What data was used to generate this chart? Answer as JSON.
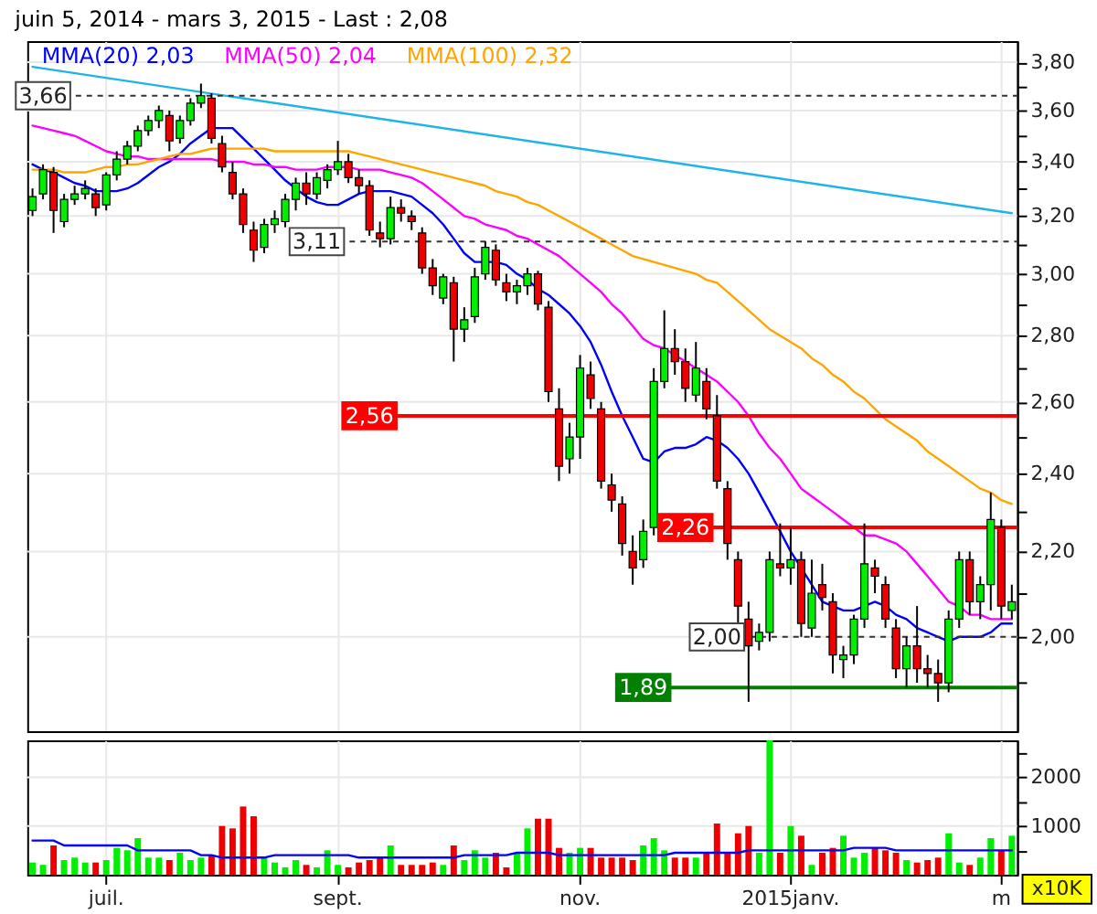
{
  "chart_data": [
    {
      "type": "candlestick",
      "title": "juin 5, 2014 - mars 3, 2015 - Last : 2,08",
      "categories": [
        null,
        null,
        null,
        null,
        null,
        null,
        null,
        null,
        null,
        null,
        null,
        null,
        null,
        null,
        null,
        null,
        null,
        null,
        null,
        null,
        null,
        null,
        null,
        null,
        null,
        null,
        null,
        null,
        null,
        null,
        null,
        null,
        null,
        null,
        null,
        null,
        null,
        null,
        null,
        null,
        null,
        null,
        null,
        null,
        null,
        null,
        null,
        null,
        null,
        null,
        null,
        null,
        null,
        null,
        null,
        null,
        null,
        null,
        null,
        null,
        null,
        null,
        null,
        null,
        null,
        null,
        null,
        null,
        null,
        null,
        null,
        null,
        null,
        null,
        null,
        null,
        null,
        null,
        null,
        null,
        null,
        null,
        null,
        null,
        null,
        null,
        null,
        null,
        null,
        null,
        null,
        null,
        null,
        null
      ],
      "ohlc": [
        [
          3.22,
          3.3,
          3.2,
          3.27
        ],
        [
          3.28,
          3.39,
          3.26,
          3.37
        ],
        [
          3.36,
          3.38,
          3.14,
          3.22
        ],
        [
          3.18,
          3.28,
          3.16,
          3.26
        ],
        [
          3.26,
          3.31,
          3.24,
          3.28
        ],
        [
          3.28,
          3.33,
          3.26,
          3.3
        ],
        [
          3.28,
          3.3,
          3.2,
          3.23
        ],
        [
          3.24,
          3.36,
          3.22,
          3.35
        ],
        [
          3.35,
          3.44,
          3.33,
          3.41
        ],
        [
          3.41,
          3.48,
          3.39,
          3.46
        ],
        [
          3.46,
          3.54,
          3.44,
          3.52
        ],
        [
          3.52,
          3.58,
          3.5,
          3.56
        ],
        [
          3.56,
          3.62,
          3.53,
          3.6
        ],
        [
          3.58,
          3.6,
          3.44,
          3.48
        ],
        [
          3.49,
          3.58,
          3.47,
          3.56
        ],
        [
          3.56,
          3.65,
          3.54,
          3.63
        ],
        [
          3.63,
          3.71,
          3.61,
          3.66
        ],
        [
          3.65,
          3.67,
          3.47,
          3.49
        ],
        [
          3.47,
          3.5,
          3.36,
          3.38
        ],
        [
          3.36,
          3.4,
          3.26,
          3.28
        ],
        [
          3.28,
          3.3,
          3.14,
          3.17
        ],
        [
          3.15,
          3.18,
          3.04,
          3.08
        ],
        [
          3.09,
          3.19,
          3.07,
          3.17
        ],
        [
          3.17,
          3.22,
          3.14,
          3.19
        ],
        [
          3.18,
          3.28,
          3.16,
          3.26
        ],
        [
          3.26,
          3.34,
          3.22,
          3.32
        ],
        [
          3.32,
          3.36,
          3.24,
          3.28
        ],
        [
          3.28,
          3.36,
          3.26,
          3.34
        ],
        [
          3.33,
          3.39,
          3.3,
          3.37
        ],
        [
          3.37,
          3.48,
          3.35,
          3.4
        ],
        [
          3.4,
          3.43,
          3.32,
          3.34
        ],
        [
          3.34,
          3.37,
          3.28,
          3.31
        ],
        [
          3.31,
          3.33,
          3.13,
          3.15
        ],
        [
          3.14,
          3.18,
          3.09,
          3.12
        ],
        [
          3.12,
          3.27,
          3.1,
          3.23
        ],
        [
          3.23,
          3.26,
          3.18,
          3.21
        ],
        [
          3.2,
          3.22,
          3.15,
          3.18
        ],
        [
          3.14,
          3.16,
          3.0,
          3.02
        ],
        [
          3.02,
          3.05,
          2.93,
          2.96
        ],
        [
          2.92,
          3.0,
          2.9,
          2.99
        ],
        [
          2.97,
          2.99,
          2.72,
          2.82
        ],
        [
          2.82,
          2.89,
          2.78,
          2.85
        ],
        [
          2.86,
          3.02,
          2.84,
          2.99
        ],
        [
          3.0,
          3.11,
          2.98,
          3.09
        ],
        [
          3.08,
          3.1,
          2.96,
          2.98
        ],
        [
          2.97,
          3.0,
          2.91,
          2.94
        ],
        [
          2.94,
          2.98,
          2.9,
          2.96
        ],
        [
          2.96,
          3.02,
          2.93,
          3.0
        ],
        [
          3.0,
          3.01,
          2.88,
          2.9
        ],
        [
          2.89,
          2.91,
          2.6,
          2.63
        ],
        [
          2.58,
          2.64,
          2.38,
          2.42
        ],
        [
          2.44,
          2.54,
          2.4,
          2.5
        ],
        [
          2.5,
          2.74,
          2.44,
          2.7
        ],
        [
          2.68,
          2.72,
          2.58,
          2.61
        ],
        [
          2.58,
          2.6,
          2.36,
          2.38
        ],
        [
          2.37,
          2.4,
          2.3,
          2.33
        ],
        [
          2.32,
          2.34,
          2.19,
          2.22
        ],
        [
          2.2,
          2.24,
          2.12,
          2.16
        ],
        [
          2.18,
          2.28,
          2.16,
          2.25
        ],
        [
          2.26,
          2.7,
          2.24,
          2.66
        ],
        [
          2.66,
          2.88,
          2.64,
          2.76
        ],
        [
          2.76,
          2.82,
          2.68,
          2.72
        ],
        [
          2.72,
          2.76,
          2.6,
          2.64
        ],
        [
          2.62,
          2.78,
          2.6,
          2.7
        ],
        [
          2.66,
          2.7,
          2.55,
          2.58
        ],
        [
          2.56,
          2.62,
          2.36,
          2.38
        ],
        [
          2.36,
          2.38,
          2.18,
          2.22
        ],
        [
          2.18,
          2.2,
          2.0,
          2.07
        ],
        [
          2.04,
          2.08,
          1.86,
          1.98
        ],
        [
          1.99,
          2.03,
          1.97,
          2.01
        ],
        [
          2.01,
          2.2,
          1.99,
          2.18
        ],
        [
          2.17,
          2.27,
          2.14,
          2.16
        ],
        [
          2.16,
          2.26,
          2.12,
          2.18
        ],
        [
          2.18,
          2.2,
          2.0,
          2.03
        ],
        [
          2.02,
          2.18,
          2.0,
          2.1
        ],
        [
          2.12,
          2.17,
          2.06,
          2.09
        ],
        [
          2.08,
          2.1,
          1.92,
          1.96
        ],
        [
          1.95,
          1.98,
          1.91,
          1.96
        ],
        [
          1.96,
          2.05,
          1.94,
          2.04
        ],
        [
          2.04,
          2.27,
          2.02,
          2.17
        ],
        [
          2.16,
          2.18,
          2.1,
          2.14
        ],
        [
          2.12,
          2.14,
          2.02,
          2.04
        ],
        [
          2.02,
          2.04,
          1.91,
          1.93
        ],
        [
          1.93,
          2.0,
          1.89,
          1.98
        ],
        [
          1.98,
          2.07,
          1.9,
          1.93
        ],
        [
          1.93,
          1.96,
          1.89,
          1.92
        ],
        [
          1.92,
          1.95,
          1.86,
          1.9
        ],
        [
          1.9,
          2.06,
          1.88,
          2.04
        ],
        [
          2.04,
          2.2,
          2.02,
          2.18
        ],
        [
          2.18,
          2.2,
          2.05,
          2.08
        ],
        [
          2.08,
          2.14,
          2.04,
          2.12
        ],
        [
          2.12,
          2.35,
          2.06,
          2.28
        ],
        [
          2.26,
          2.28,
          2.04,
          2.07
        ],
        [
          2.06,
          2.12,
          2.04,
          2.08
        ]
      ],
      "colors": [
        "#00ee00",
        "#00ee00",
        "#ee0000",
        "#00ee00",
        "#00ee00",
        "#00ee00",
        "#ee0000",
        "#00ee00",
        "#00ee00",
        "#00ee00",
        "#00ee00",
        "#00ee00",
        "#00ee00",
        "#ee0000",
        "#00ee00",
        "#00ee00",
        "#00ee00",
        "#ee0000",
        "#ee0000",
        "#ee0000",
        "#ee0000",
        "#ee0000",
        "#00ee00",
        "#00ee00",
        "#00ee00",
        "#00ee00",
        "#ee0000",
        "#00ee00",
        "#00ee00",
        "#00ee00",
        "#ee0000",
        "#ee0000",
        "#ee0000",
        "#ee0000",
        "#00ee00",
        "#ee0000",
        "#ee0000",
        "#ee0000",
        "#ee0000",
        "#00ee00",
        "#ee0000",
        "#00ee00",
        "#00ee00",
        "#00ee00",
        "#ee0000",
        "#ee0000",
        "#00ee00",
        "#00ee00",
        "#ee0000",
        "#ee0000",
        "#ee0000",
        "#00ee00",
        "#00ee00",
        "#ee0000",
        "#ee0000",
        "#ee0000",
        "#ee0000",
        "#ee0000",
        "#00ee00",
        "#00ee00",
        "#00ee00",
        "#ee0000",
        "#ee0000",
        "#00ee00",
        "#ee0000",
        "#ee0000",
        "#ee0000",
        "#ee0000",
        "#ee0000",
        "#00ee00",
        "#00ee00",
        "#ee0000",
        "#00ee00",
        "#ee0000",
        "#00ee00",
        "#ee0000",
        "#ee0000",
        "#00ee00",
        "#00ee00",
        "#00ee00",
        "#ee0000",
        "#ee0000",
        "#ee0000",
        "#00ee00",
        "#ee0000",
        "#ee0000",
        "#ee0000",
        "#00ee00",
        "#00ee00",
        "#ee0000",
        "#00ee00",
        "#00ee00",
        "#ee0000",
        "#00ee00"
      ],
      "series": [
        {
          "type": "line",
          "name": "MMA(20) 2,03",
          "color": "#0000ff",
          "values": [
            3.39,
            3.37,
            3.36,
            3.34,
            3.32,
            3.31,
            3.29,
            3.29,
            3.29,
            3.3,
            3.32,
            3.35,
            3.38,
            3.4,
            3.43,
            3.47,
            3.5,
            3.53,
            3.53,
            3.53,
            3.49,
            3.45,
            3.41,
            3.37,
            3.33,
            3.3,
            3.27,
            3.25,
            3.24,
            3.24,
            3.26,
            3.28,
            3.29,
            3.29,
            3.29,
            3.28,
            3.27,
            3.24,
            3.21,
            3.17,
            3.12,
            3.07,
            3.04,
            3.04,
            3.04,
            3.03,
            3.0,
            2.98,
            2.95,
            2.93,
            2.9,
            2.87,
            2.83,
            2.78,
            2.71,
            2.63,
            2.56,
            2.5,
            2.44,
            2.43,
            2.46,
            2.47,
            2.47,
            2.48,
            2.5,
            2.49,
            2.47,
            2.44,
            2.4,
            2.35,
            2.3,
            2.25,
            2.2,
            2.16,
            2.12,
            2.08,
            2.07,
            2.06,
            2.06,
            2.07,
            2.08,
            2.07,
            2.05,
            2.04,
            2.02,
            2.01,
            2.0,
            1.99,
            2.0,
            2.0,
            2.0,
            2.01,
            2.03,
            2.03
          ]
        },
        {
          "type": "line",
          "name": "MMA(50) 2,04",
          "color": "#ff00ff",
          "values": [
            3.54,
            3.53,
            3.52,
            3.51,
            3.5,
            3.48,
            3.46,
            3.44,
            3.43,
            3.42,
            3.42,
            3.41,
            3.41,
            3.41,
            3.41,
            3.41,
            3.41,
            3.41,
            3.4,
            3.4,
            3.4,
            3.39,
            3.39,
            3.38,
            3.38,
            3.37,
            3.37,
            3.37,
            3.38,
            3.38,
            3.38,
            3.37,
            3.37,
            3.37,
            3.36,
            3.35,
            3.34,
            3.32,
            3.29,
            3.26,
            3.23,
            3.2,
            3.19,
            3.17,
            3.16,
            3.15,
            3.13,
            3.12,
            3.1,
            3.08,
            3.06,
            3.03,
            3.0,
            2.97,
            2.94,
            2.9,
            2.87,
            2.83,
            2.79,
            2.77,
            2.76,
            2.74,
            2.72,
            2.7,
            2.68,
            2.66,
            2.63,
            2.6,
            2.56,
            2.51,
            2.47,
            2.44,
            2.4,
            2.36,
            2.34,
            2.32,
            2.3,
            2.28,
            2.26,
            2.24,
            2.24,
            2.23,
            2.22,
            2.2,
            2.17,
            2.14,
            2.11,
            2.08,
            2.07,
            2.05,
            2.05,
            2.04,
            2.04,
            2.04
          ]
        },
        {
          "type": "line",
          "name": "MMA(100) 2,32",
          "color": "#ffa500",
          "values": [
            3.37,
            3.37,
            3.37,
            3.36,
            3.36,
            3.36,
            3.37,
            3.38,
            3.38,
            3.39,
            3.39,
            3.4,
            3.41,
            3.42,
            3.43,
            3.43,
            3.44,
            3.45,
            3.45,
            3.45,
            3.45,
            3.45,
            3.45,
            3.44,
            3.44,
            3.44,
            3.44,
            3.44,
            3.44,
            3.44,
            3.44,
            3.43,
            3.42,
            3.41,
            3.4,
            3.39,
            3.38,
            3.37,
            3.36,
            3.35,
            3.34,
            3.33,
            3.32,
            3.31,
            3.29,
            3.28,
            3.27,
            3.25,
            3.24,
            3.22,
            3.2,
            3.18,
            3.16,
            3.14,
            3.12,
            3.1,
            3.08,
            3.06,
            3.05,
            3.04,
            3.03,
            3.02,
            3.01,
            3.0,
            2.98,
            2.97,
            2.94,
            2.91,
            2.88,
            2.85,
            2.82,
            2.8,
            2.78,
            2.76,
            2.73,
            2.71,
            2.68,
            2.66,
            2.63,
            2.61,
            2.58,
            2.55,
            2.53,
            2.51,
            2.49,
            2.46,
            2.44,
            2.42,
            2.4,
            2.38,
            2.36,
            2.35,
            2.33,
            2.32
          ]
        },
        {
          "type": "line",
          "color": "#1eb4e6",
          "values": [
            3.78,
            null,
            null,
            null,
            null,
            null,
            null,
            null,
            null,
            null,
            null,
            null,
            null,
            null,
            null,
            null,
            null,
            null,
            null,
            null,
            null,
            null,
            null,
            null,
            null,
            null,
            null,
            null,
            null,
            null,
            null,
            null,
            null,
            null,
            null,
            null,
            null,
            null,
            null,
            null,
            null,
            null,
            null,
            null,
            null,
            null,
            null,
            null,
            null,
            null,
            null,
            null,
            null,
            null,
            null,
            null,
            null,
            null,
            null,
            null,
            null,
            null,
            null,
            null,
            null,
            null,
            null,
            null,
            null,
            null,
            null,
            null,
            null,
            null,
            null,
            null,
            null,
            null,
            null,
            null,
            null,
            null,
            null,
            null,
            null,
            null,
            null,
            null,
            null,
            null,
            null,
            null,
            null,
            3.21
          ]
        }
      ],
      "ref_lines": [
        {
          "axis": "y",
          "value": 3.66,
          "label": "3,66",
          "color": "#333333",
          "line_style": "dashed"
        },
        {
          "axis": "y",
          "value": 3.11,
          "label": "3,11",
          "color": "#333333",
          "line_style": "dashed"
        },
        {
          "axis": "y",
          "value": 2.56,
          "label": "2,56",
          "color": "#ff0000",
          "line_style": "solid"
        },
        {
          "axis": "y",
          "value": 2.26,
          "label": "2,26",
          "color": "#ff0000",
          "line_style": "solid"
        },
        {
          "axis": "y",
          "value": 2.0,
          "label": "2,00",
          "color": "#333333",
          "line_style": "dashed"
        },
        {
          "axis": "y",
          "value": 1.89,
          "label": "1,89",
          "color": "#008000",
          "line_style": "solid"
        }
      ],
      "ylim": [
        1.8,
        3.89
      ],
      "yticks": [
        {
          "value": 1.9,
          "label": null
        },
        {
          "value": 2.0,
          "label": "2,00"
        },
        {
          "value": 2.1,
          "label": null
        },
        {
          "value": 2.2,
          "label": "2,20"
        },
        {
          "value": 2.3,
          "label": null
        },
        {
          "value": 2.4,
          "label": "2,40"
        },
        {
          "value": 2.5,
          "label": null
        },
        {
          "value": 2.6,
          "label": "2,60"
        },
        {
          "value": 2.7,
          "label": null
        },
        {
          "value": 2.8,
          "label": "2,80"
        },
        {
          "value": 2.9,
          "label": null
        },
        {
          "value": 3.0,
          "label": "3,00"
        },
        {
          "value": 3.1,
          "label": null
        },
        {
          "value": 3.2,
          "label": "3,20"
        },
        {
          "value": 3.3,
          "label": null
        },
        {
          "value": 3.4,
          "label": "3,40"
        },
        {
          "value": 3.5,
          "label": null
        },
        {
          "value": 3.6,
          "label": "3,60"
        },
        {
          "value": 3.7,
          "label": null
        },
        {
          "value": 3.8,
          "label": "3,80"
        }
      ],
      "log": true,
      "grid": true,
      "legend": "top left",
      "tick_labels": "y"
    },
    {
      "type": "bar",
      "categories": [
        null,
        null,
        null,
        null,
        null,
        null,
        null,
        "juil.",
        null,
        null,
        null,
        null,
        null,
        null,
        null,
        null,
        null,
        null,
        null,
        null,
        null,
        null,
        null,
        null,
        null,
        null,
        null,
        null,
        null,
        "sept.",
        null,
        null,
        null,
        null,
        null,
        null,
        null,
        null,
        null,
        null,
        null,
        null,
        null,
        null,
        null,
        null,
        null,
        null,
        null,
        null,
        null,
        null,
        "nov.",
        null,
        null,
        null,
        null,
        null,
        null,
        null,
        null,
        null,
        null,
        null,
        null,
        null,
        null,
        null,
        null,
        null,
        null,
        null,
        "2015janv.",
        null,
        null,
        null,
        null,
        null,
        null,
        null,
        null,
        null,
        null,
        null,
        null,
        null,
        null,
        null,
        null,
        null,
        null,
        null,
        "m",
        null
      ],
      "series": [
        {
          "type": "bar",
          "values": [
            250,
            200,
            600,
            300,
            350,
            250,
            250,
            300,
            550,
            500,
            750,
            350,
            350,
            300,
            450,
            300,
            350,
            400,
            1000,
            950,
            1400,
            1200,
            350,
            250,
            150,
            300,
            200,
            150,
            500,
            200,
            150,
            250,
            300,
            350,
            600,
            200,
            200,
            200,
            250,
            200,
            600,
            300,
            500,
            350,
            450,
            150,
            450,
            950,
            1150,
            1150,
            550,
            450,
            550,
            550,
            350,
            350,
            350,
            300,
            600,
            750,
            500,
            350,
            350,
            350,
            450,
            1050,
            450,
            850,
            1000,
            450,
            2760,
            450,
            1000,
            800,
            200,
            450,
            550,
            800,
            350,
            450,
            550,
            500,
            450,
            300,
            250,
            300,
            350,
            850,
            250,
            200,
            350,
            750,
            500,
            800
          ],
          "colors": [
            "#00ee00",
            "#00ee00",
            "#ee0000",
            "#00ee00",
            "#00ee00",
            "#00ee00",
            "#ee0000",
            "#00ee00",
            "#00ee00",
            "#00ee00",
            "#00ee00",
            "#00ee00",
            "#00ee00",
            "#ee0000",
            "#00ee00",
            "#00ee00",
            "#00ee00",
            "#ee0000",
            "#ee0000",
            "#ee0000",
            "#ee0000",
            "#ee0000",
            "#00ee00",
            "#00ee00",
            "#00ee00",
            "#00ee00",
            "#ee0000",
            "#00ee00",
            "#00ee00",
            "#00ee00",
            "#ee0000",
            "#ee0000",
            "#ee0000",
            "#ee0000",
            "#00ee00",
            "#ee0000",
            "#ee0000",
            "#ee0000",
            "#ee0000",
            "#00ee00",
            "#ee0000",
            "#00ee00",
            "#00ee00",
            "#00ee00",
            "#ee0000",
            "#ee0000",
            "#00ee00",
            "#00ee00",
            "#ee0000",
            "#ee0000",
            "#ee0000",
            "#00ee00",
            "#00ee00",
            "#ee0000",
            "#ee0000",
            "#ee0000",
            "#ee0000",
            "#ee0000",
            "#00ee00",
            "#00ee00",
            "#00ee00",
            "#ee0000",
            "#ee0000",
            "#00ee00",
            "#ee0000",
            "#ee0000",
            "#ee0000",
            "#ee0000",
            "#ee0000",
            "#00ee00",
            "#00ee00",
            "#ee0000",
            "#00ee00",
            "#ee0000",
            "#00ee00",
            "#ee0000",
            "#ee0000",
            "#00ee00",
            "#00ee00",
            "#00ee00",
            "#ee0000",
            "#ee0000",
            "#ee0000",
            "#00ee00",
            "#ee0000",
            "#ee0000",
            "#ee0000",
            "#00ee00",
            "#00ee00",
            "#ee0000",
            "#00ee00",
            "#00ee00",
            "#ee0000",
            "#00ee00"
          ]
        },
        {
          "type": "line",
          "color": "#0000ff",
          "values": [
            700,
            700,
            700,
            600,
            600,
            600,
            600,
            600,
            600,
            600,
            500,
            500,
            500,
            500,
            500,
            500,
            400,
            400,
            350,
            350,
            350,
            350,
            350,
            400,
            400,
            400,
            400,
            400,
            400,
            400,
            400,
            350,
            350,
            350,
            350,
            350,
            350,
            350,
            350,
            350,
            350,
            400,
            400,
            400,
            400,
            400,
            450,
            450,
            450,
            450,
            400,
            400,
            400,
            400,
            400,
            400,
            400,
            400,
            400,
            400,
            400,
            450,
            450,
            450,
            450,
            450,
            450,
            450,
            500,
            500,
            500,
            500,
            500,
            500,
            500,
            500,
            500,
            500,
            550,
            550,
            550,
            550,
            500,
            500,
            500,
            500,
            500,
            500,
            500,
            500,
            500,
            500,
            500,
            500
          ]
        }
      ],
      "ylim": [
        0,
        2760
      ],
      "yticks": [
        {
          "value": 500,
          "label": null
        },
        1000,
        {
          "value": 1500,
          "label": null
        },
        2000,
        {
          "value": 2500,
          "label": null
        }
      ],
      "grid": true,
      "annotations": [
        "x10K"
      ]
    }
  ]
}
